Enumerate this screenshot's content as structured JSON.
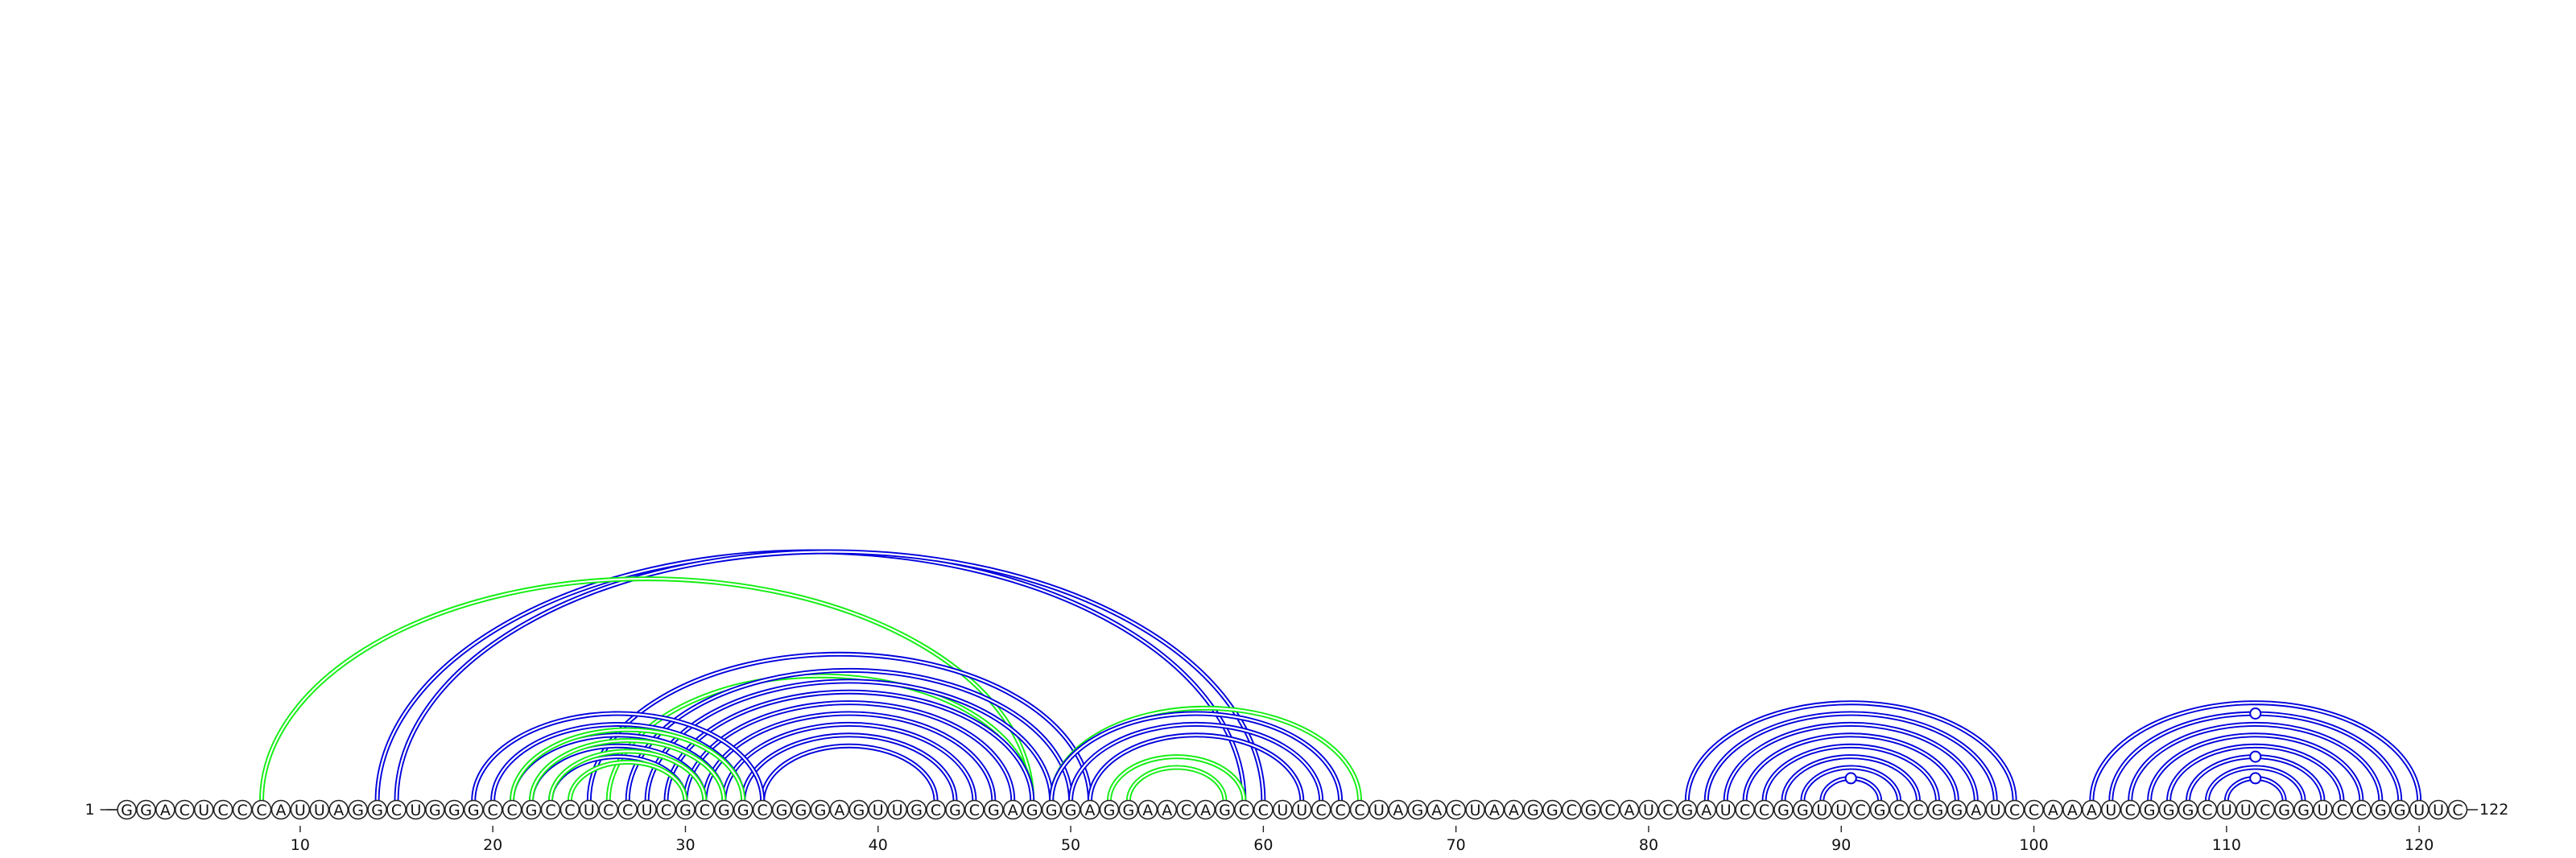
{
  "sequence": "GGACUCCCAUUAGGCUGGGCCGCCUCCUCGCGGCGGGAGUUGCGCGAGGGAGGAACAGCCUUCCCUAGACUAAGGCGCAUCGAUCCGGUUCGCCGGAUCCAAAUCGGGCUUCGGUCCGGUUC",
  "start_label": "1",
  "end_label": "122",
  "ticks": [
    10,
    20,
    30,
    40,
    50,
    60,
    70,
    80,
    90,
    100,
    110,
    120
  ],
  "colors": {
    "blue": "#0000dd",
    "green": "#11ee11",
    "backbone": "#222222"
  },
  "arcs": [
    {
      "i": 14,
      "j": 59,
      "color": "blue"
    },
    {
      "i": 15,
      "j": 60,
      "color": "blue"
    },
    {
      "i": 8,
      "j": 48,
      "color": "green"
    },
    {
      "i": 25,
      "j": 51,
      "color": "blue"
    },
    {
      "i": 26,
      "j": 48,
      "color": "green"
    },
    {
      "i": 27,
      "j": 50,
      "color": "blue"
    },
    {
      "i": 28,
      "j": 49,
      "color": "blue"
    },
    {
      "i": 29,
      "j": 48,
      "color": "blue"
    },
    {
      "i": 30,
      "j": 47,
      "color": "blue"
    },
    {
      "i": 31,
      "j": 46,
      "color": "blue"
    },
    {
      "i": 32,
      "j": 45,
      "color": "blue"
    },
    {
      "i": 33,
      "j": 44,
      "color": "blue"
    },
    {
      "i": 34,
      "j": 43,
      "color": "blue"
    },
    {
      "i": 19,
      "j": 34,
      "color": "blue"
    },
    {
      "i": 20,
      "j": 33,
      "color": "blue"
    },
    {
      "i": 21,
      "j": 32,
      "color": "blue"
    },
    {
      "i": 22,
      "j": 31,
      "color": "blue"
    },
    {
      "i": 23,
      "j": 30,
      "color": "blue"
    },
    {
      "i": 21,
      "j": 33,
      "color": "green"
    },
    {
      "i": 22,
      "j": 32,
      "color": "green"
    },
    {
      "i": 23,
      "j": 31,
      "color": "green"
    },
    {
      "i": 24,
      "j": 30,
      "color": "green"
    },
    {
      "i": 49,
      "j": 65,
      "color": "green"
    },
    {
      "i": 49,
      "j": 64,
      "color": "blue"
    },
    {
      "i": 50,
      "j": 63,
      "color": "blue"
    },
    {
      "i": 51,
      "j": 62,
      "color": "blue"
    },
    {
      "i": 52,
      "j": 59,
      "color": "green"
    },
    {
      "i": 53,
      "j": 58,
      "color": "green"
    },
    {
      "i": 82,
      "j": 99,
      "color": "blue"
    },
    {
      "i": 83,
      "j": 98,
      "color": "blue"
    },
    {
      "i": 84,
      "j": 97,
      "color": "blue"
    },
    {
      "i": 85,
      "j": 96,
      "color": "blue"
    },
    {
      "i": 86,
      "j": 95,
      "color": "blue"
    },
    {
      "i": 87,
      "j": 94,
      "color": "blue"
    },
    {
      "i": 88,
      "j": 93,
      "color": "blue"
    },
    {
      "i": 89,
      "j": 92,
      "color": "blue"
    },
    {
      "i": 103,
      "j": 120,
      "color": "blue"
    },
    {
      "i": 104,
      "j": 119,
      "color": "blue"
    },
    {
      "i": 105,
      "j": 118,
      "color": "blue"
    },
    {
      "i": 106,
      "j": 117,
      "color": "blue"
    },
    {
      "i": 107,
      "j": 116,
      "color": "blue"
    },
    {
      "i": 108,
      "j": 115,
      "color": "blue"
    },
    {
      "i": 109,
      "j": 114,
      "color": "blue"
    },
    {
      "i": 110,
      "j": 113,
      "color": "blue"
    }
  ],
  "noncanonical_pairs": [
    {
      "i": 89,
      "j": 92,
      "color": "blue"
    },
    {
      "i": 104,
      "j": 119,
      "color": "blue"
    },
    {
      "i": 108,
      "j": 115,
      "color": "blue"
    },
    {
      "i": 110,
      "j": 113,
      "color": "blue"
    }
  ]
}
